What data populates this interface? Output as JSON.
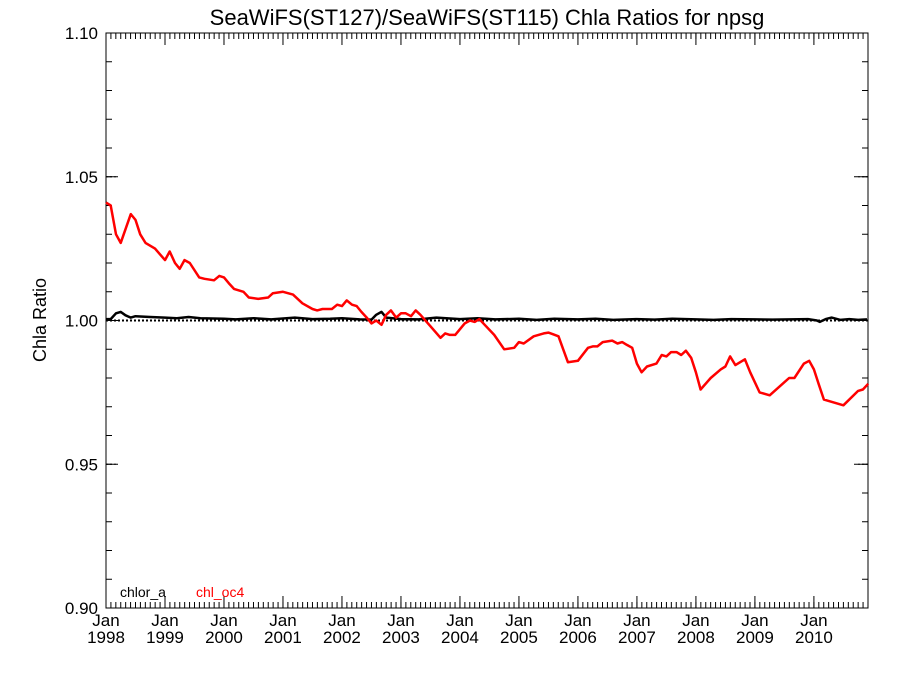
{
  "chart_data": {
    "type": "line",
    "title": "SeaWiFS(ST127)/SeaWiFS(ST115)  Chla Ratios for npsg",
    "ylabel": "Chla Ratio",
    "xlabel": "",
    "xlim": [
      1998.0,
      2010.917
    ],
    "ylim": [
      0.9,
      1.1
    ],
    "yticks": [
      "0.90",
      "0.95",
      "1.00",
      "1.05",
      "1.10"
    ],
    "ytick_values": [
      0.9,
      0.95,
      1.0,
      1.05,
      1.1
    ],
    "xticks": [
      {
        "x": 1998,
        "month": "Jan",
        "year": "1998"
      },
      {
        "x": 1999,
        "month": "Jan",
        "year": "1999"
      },
      {
        "x": 2000,
        "month": "Jan",
        "year": "2000"
      },
      {
        "x": 2001,
        "month": "Jan",
        "year": "2001"
      },
      {
        "x": 2002,
        "month": "Jan",
        "year": "2002"
      },
      {
        "x": 2003,
        "month": "Jan",
        "year": "2003"
      },
      {
        "x": 2004,
        "month": "Jan",
        "year": "2004"
      },
      {
        "x": 2005,
        "month": "Jan",
        "year": "2005"
      },
      {
        "x": 2006,
        "month": "Jan",
        "year": "2006"
      },
      {
        "x": 2007,
        "month": "Jan",
        "year": "2007"
      },
      {
        "x": 2008,
        "month": "Jan",
        "year": "2008"
      },
      {
        "x": 2009,
        "month": "Jan",
        "year": "2009"
      },
      {
        "x": 2010,
        "month": "Jan",
        "year": "2010"
      }
    ],
    "reference_line": 1.0,
    "grid": false,
    "legend_position": "bottom-left",
    "series": [
      {
        "name": "chlor_a",
        "color": "#000000",
        "points": [
          [
            1998.0,
            1.0005
          ],
          [
            1998.08,
            1.0005
          ],
          [
            1998.17,
            1.0025
          ],
          [
            1998.25,
            1.003
          ],
          [
            1998.33,
            1.0018
          ],
          [
            1998.42,
            1.001
          ],
          [
            1998.5,
            1.0015
          ],
          [
            1998.75,
            1.0012
          ],
          [
            1999.0,
            1.001
          ],
          [
            1999.2,
            1.0008
          ],
          [
            1999.4,
            1.0012
          ],
          [
            1999.6,
            1.0008
          ],
          [
            2000.0,
            1.0006
          ],
          [
            2000.2,
            1.0004
          ],
          [
            2000.5,
            1.0008
          ],
          [
            2000.8,
            1.0004
          ],
          [
            2001.0,
            1.0007
          ],
          [
            2001.2,
            1.001
          ],
          [
            2001.5,
            1.0005
          ],
          [
            2001.8,
            1.0006
          ],
          [
            2002.0,
            1.0008
          ],
          [
            2002.3,
            1.0004
          ],
          [
            2002.5,
            1.0003
          ],
          [
            2002.58,
            1.002
          ],
          [
            2002.67,
            1.003
          ],
          [
            2002.75,
            1.001
          ],
          [
            2003.0,
            1.0005
          ],
          [
            2003.3,
            1.0004
          ],
          [
            2003.6,
            1.001
          ],
          [
            2004.0,
            1.0005
          ],
          [
            2004.3,
            1.0008
          ],
          [
            2004.6,
            1.0004
          ],
          [
            2005.0,
            1.0006
          ],
          [
            2005.3,
            1.0002
          ],
          [
            2005.6,
            1.0006
          ],
          [
            2006.0,
            1.0004
          ],
          [
            2006.3,
            1.0006
          ],
          [
            2006.6,
            1.0002
          ],
          [
            2007.0,
            1.0005
          ],
          [
            2007.3,
            1.0003
          ],
          [
            2007.6,
            1.0006
          ],
          [
            2008.0,
            1.0004
          ],
          [
            2008.3,
            1.0002
          ],
          [
            2008.6,
            1.0005
          ],
          [
            2009.0,
            1.0004
          ],
          [
            2009.3,
            1.0003
          ],
          [
            2009.6,
            1.0004
          ],
          [
            2009.9,
            1.0005
          ],
          [
            2010.05,
            1.0
          ],
          [
            2010.1,
            0.9995
          ],
          [
            2010.2,
            1.0005
          ],
          [
            2010.3,
            1.001
          ],
          [
            2010.45,
            1.0002
          ],
          [
            2010.6,
            1.0005
          ],
          [
            2010.75,
            1.0002
          ],
          [
            2010.9,
            1.0004
          ]
        ]
      },
      {
        "name": "chl_oc4",
        "color": "#ff0000",
        "points": [
          [
            1998.0,
            1.041
          ],
          [
            1998.08,
            1.04
          ],
          [
            1998.17,
            1.03
          ],
          [
            1998.25,
            1.027
          ],
          [
            1998.42,
            1.037
          ],
          [
            1998.5,
            1.035
          ],
          [
            1998.58,
            1.03
          ],
          [
            1998.67,
            1.027
          ],
          [
            1998.83,
            1.025
          ],
          [
            1999.0,
            1.021
          ],
          [
            1999.08,
            1.024
          ],
          [
            1999.17,
            1.02
          ],
          [
            1999.25,
            1.018
          ],
          [
            1999.33,
            1.021
          ],
          [
            1999.42,
            1.02
          ],
          [
            1999.58,
            1.015
          ],
          [
            1999.67,
            1.0145
          ],
          [
            1999.83,
            1.014
          ],
          [
            1999.92,
            1.0155
          ],
          [
            2000.0,
            1.015
          ],
          [
            2000.08,
            1.013
          ],
          [
            2000.17,
            1.011
          ],
          [
            2000.33,
            1.01
          ],
          [
            2000.42,
            1.008
          ],
          [
            2000.58,
            1.0075
          ],
          [
            2000.75,
            1.008
          ],
          [
            2000.83,
            1.0095
          ],
          [
            2001.0,
            1.01
          ],
          [
            2001.17,
            1.009
          ],
          [
            2001.33,
            1.006
          ],
          [
            2001.5,
            1.004
          ],
          [
            2001.58,
            1.0035
          ],
          [
            2001.67,
            1.004
          ],
          [
            2001.83,
            1.004
          ],
          [
            2001.92,
            1.0055
          ],
          [
            2002.0,
            1.005
          ],
          [
            2002.08,
            1.007
          ],
          [
            2002.17,
            1.0055
          ],
          [
            2002.25,
            1.005
          ],
          [
            2002.33,
            1.003
          ],
          [
            2002.42,
            1.001
          ],
          [
            2002.5,
            0.999
          ],
          [
            2002.58,
            1.0
          ],
          [
            2002.67,
            0.9985
          ],
          [
            2002.75,
            1.002
          ],
          [
            2002.83,
            1.0035
          ],
          [
            2002.92,
            1.001
          ],
          [
            2003.0,
            1.0025
          ],
          [
            2003.08,
            1.0025
          ],
          [
            2003.17,
            1.0015
          ],
          [
            2003.25,
            1.0035
          ],
          [
            2003.33,
            1.002
          ],
          [
            2003.5,
            0.998
          ],
          [
            2003.67,
            0.994
          ],
          [
            2003.75,
            0.9955
          ],
          [
            2003.83,
            0.995
          ],
          [
            2003.92,
            0.995
          ],
          [
            2004.08,
            0.999
          ],
          [
            2004.17,
            1.0
          ],
          [
            2004.25,
            0.9995
          ],
          [
            2004.33,
            1.0005
          ],
          [
            2004.42,
            0.9985
          ],
          [
            2004.58,
            0.995
          ],
          [
            2004.75,
            0.99
          ],
          [
            2004.92,
            0.9905
          ],
          [
            2005.0,
            0.9925
          ],
          [
            2005.08,
            0.992
          ],
          [
            2005.25,
            0.9945
          ],
          [
            2005.42,
            0.9955
          ],
          [
            2005.5,
            0.9958
          ],
          [
            2005.58,
            0.9952
          ],
          [
            2005.67,
            0.9945
          ],
          [
            2005.75,
            0.99
          ],
          [
            2005.83,
            0.9855
          ],
          [
            2006.0,
            0.986
          ],
          [
            2006.17,
            0.9905
          ],
          [
            2006.25,
            0.991
          ],
          [
            2006.33,
            0.991
          ],
          [
            2006.42,
            0.9925
          ],
          [
            2006.58,
            0.993
          ],
          [
            2006.67,
            0.992
          ],
          [
            2006.75,
            0.9925
          ],
          [
            2006.83,
            0.9915
          ],
          [
            2006.92,
            0.9905
          ],
          [
            2007.0,
            0.985
          ],
          [
            2007.08,
            0.982
          ],
          [
            2007.17,
            0.984
          ],
          [
            2007.33,
            0.985
          ],
          [
            2007.42,
            0.988
          ],
          [
            2007.5,
            0.9875
          ],
          [
            2007.58,
            0.989
          ],
          [
            2007.67,
            0.989
          ],
          [
            2007.75,
            0.988
          ],
          [
            2007.83,
            0.9895
          ],
          [
            2007.92,
            0.987
          ],
          [
            2008.0,
            0.982
          ],
          [
            2008.08,
            0.976
          ],
          [
            2008.25,
            0.98
          ],
          [
            2008.42,
            0.983
          ],
          [
            2008.5,
            0.984
          ],
          [
            2008.58,
            0.9875
          ],
          [
            2008.67,
            0.9845
          ],
          [
            2008.83,
            0.9865
          ],
          [
            2008.92,
            0.982
          ],
          [
            2009.08,
            0.975
          ],
          [
            2009.25,
            0.974
          ],
          [
            2009.58,
            0.98
          ],
          [
            2009.67,
            0.98
          ],
          [
            2009.83,
            0.985
          ],
          [
            2009.92,
            0.986
          ],
          [
            2010.0,
            0.983
          ],
          [
            2010.08,
            0.978
          ],
          [
            2010.17,
            0.9725
          ],
          [
            2010.5,
            0.9705
          ],
          [
            2010.75,
            0.9755
          ],
          [
            2010.83,
            0.976
          ],
          [
            2010.92,
            0.978
          ]
        ]
      }
    ]
  }
}
